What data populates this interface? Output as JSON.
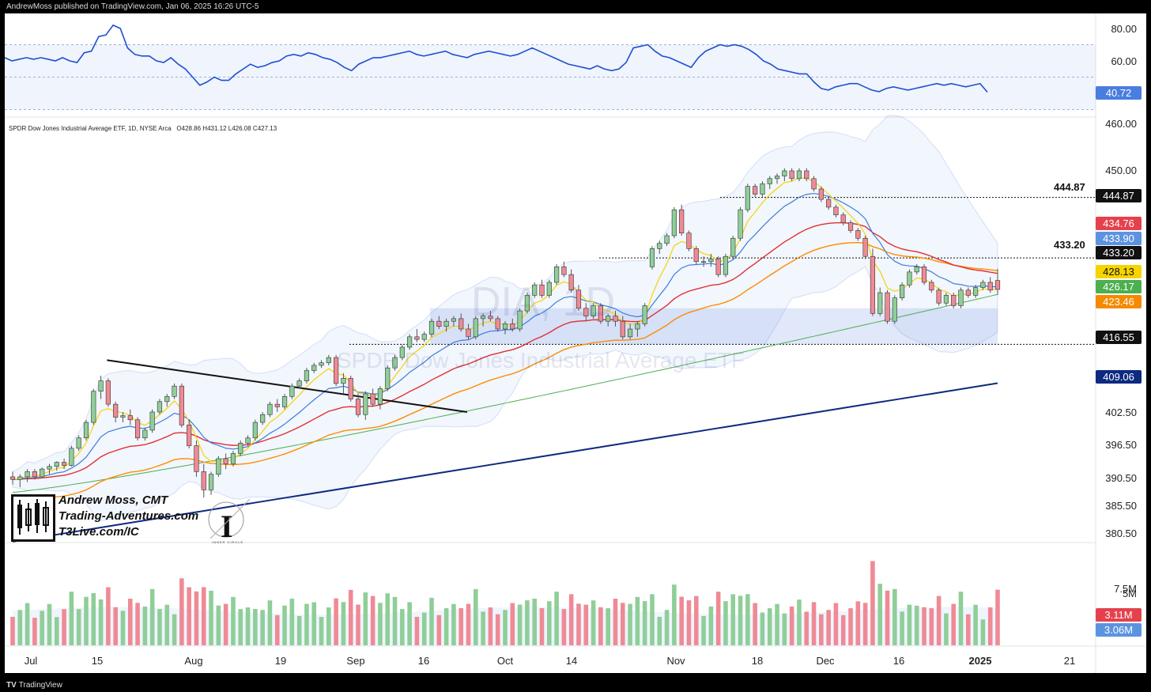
{
  "header": {
    "publisher": "AndrewMoss published on TradingView.com, Jan 06, 2025 16:26 UTC-5"
  },
  "footer": {
    "brand": "TradingView"
  },
  "instrument": {
    "title": "SPDR Dow Jones Industrial Average ETF, 1D, NYSE Arca",
    "ohlc_text": "O428.86  H431.12  L426.08  C427.13",
    "watermark_symbol": "DIA, 1D",
    "watermark_name": "SPDR Dow Jones Industrial Average ETF"
  },
  "logo": {
    "line1": "Andrew Moss, CMT",
    "line2": "Trading-Adventures.com",
    "line3": "T3Live.com/IC",
    "ic_caption": "INNER CIRCLE"
  },
  "colors": {
    "up": "#8fce98",
    "down": "#ef8a95",
    "ema8": "#f5d400",
    "ema21": "#3b7dd8",
    "sma50": "#e03030",
    "sma100": "#ff8c00",
    "sma150": "#4caf50",
    "sma200": "#0d2a80",
    "rsi": "#1f4fd1"
  },
  "price_labels": [
    {
      "text": "444.87",
      "bg": "#111111"
    },
    {
      "text": "434.76",
      "bg": "#e5414d"
    },
    {
      "text": "433.90",
      "bg": "#5c93e0"
    },
    {
      "text": "433.20",
      "bg": "#111111"
    },
    {
      "text": "428.13",
      "bg": "#f5d400",
      "fg": "#111"
    },
    {
      "text": "426.17",
      "bg": "#4caf50"
    },
    {
      "text": "423.46",
      "bg": "#f58a00"
    },
    {
      "text": "416.55",
      "bg": "#111111"
    },
    {
      "text": "409.06",
      "bg": "#0d2a80"
    }
  ],
  "level_texts": {
    "upper": "444.87",
    "lower": "433.20"
  },
  "rsi_axis": [
    "80.00",
    "60.00"
  ],
  "rsi_value": "40.72",
  "price_axis": [
    "460.00",
    "450.00",
    "402.50",
    "396.50",
    "390.50",
    "385.50",
    "380.50"
  ],
  "volume_axis": [
    "7.5M",
    "5M"
  ],
  "volume_labels": [
    {
      "text": "3.11M",
      "bg": "#e5414d"
    },
    {
      "text": "3.06M",
      "bg": "#5c93e0"
    }
  ],
  "months": [
    "Jul",
    "15",
    "Aug",
    "19",
    "Sep",
    "16",
    "Oct",
    "14",
    "Nov",
    "18",
    "Dec",
    "16",
    "2025",
    "21"
  ],
  "chart_data": [
    {
      "type": "line",
      "title": "RSI",
      "ylim": [
        40,
        85
      ],
      "reference_lines": [
        70,
        50,
        30
      ],
      "series": [
        {
          "values": [
            62,
            60,
            61,
            62,
            61,
            62,
            61,
            60,
            62,
            60,
            59,
            65,
            66,
            75,
            76,
            82,
            80,
            68,
            64,
            63,
            63,
            60,
            59,
            62,
            58,
            55,
            50,
            45,
            47,
            50,
            48,
            48,
            52,
            55,
            58,
            56,
            57,
            59,
            60,
            63,
            64,
            63,
            65,
            64,
            62,
            61,
            59,
            56,
            54,
            58,
            60,
            62,
            62,
            63,
            64,
            65,
            66,
            64,
            63,
            64,
            65,
            66,
            64,
            63,
            62,
            64,
            65,
            66,
            65,
            64,
            63,
            64,
            66,
            68,
            66,
            64,
            62,
            60,
            58,
            57,
            56,
            55,
            57,
            55,
            54,
            55,
            59,
            68,
            69,
            70,
            66,
            63,
            62,
            60,
            58,
            56,
            62,
            66,
            68,
            70,
            69,
            70,
            69,
            67,
            64,
            60,
            58,
            55,
            54,
            53,
            52,
            52,
            47,
            43,
            42,
            44,
            45,
            46,
            46,
            44,
            42,
            41,
            43,
            44,
            43,
            42,
            43,
            44,
            45,
            46,
            45,
            46,
            45,
            44,
            45,
            46,
            40.72
          ]
        }
      ]
    },
    {
      "type": "candlestick",
      "title": "SPDR Dow Jones Industrial Average ETF, 1D, NYSE Arca",
      "ylim": [
        380,
        462
      ],
      "x": [
        "Jul",
        "15",
        "Aug",
        "19",
        "Sep",
        "16",
        "Oct",
        "14",
        "Nov",
        "18",
        "Dec",
        "16",
        "2025",
        "21"
      ],
      "candles": [
        [
          391.0,
          392.0,
          389.5,
          390.5
        ],
        [
          390.5,
          391.5,
          389.0,
          391.0
        ],
        [
          391.0,
          392.5,
          390.0,
          392.0
        ],
        [
          392.0,
          392.5,
          390.5,
          391.0
        ],
        [
          391.0,
          392.8,
          390.8,
          392.5
        ],
        [
          392.5,
          393.5,
          391.5,
          393.0
        ],
        [
          393.0,
          394.0,
          392.2,
          393.8
        ],
        [
          393.8,
          394.5,
          392.5,
          393.2
        ],
        [
          393.2,
          397.0,
          393.0,
          396.5
        ],
        [
          396.5,
          399.0,
          396.0,
          398.5
        ],
        [
          398.5,
          402.0,
          398.0,
          401.5
        ],
        [
          401.5,
          408.0,
          401.0,
          407.5
        ],
        [
          407.5,
          410.5,
          406.0,
          409.5
        ],
        [
          409.5,
          410.0,
          404.5,
          405.0
        ],
        [
          405.0,
          405.5,
          401.5,
          402.5
        ],
        [
          402.5,
          403.5,
          401.5,
          402.8
        ],
        [
          402.8,
          404.0,
          401.0,
          402.0
        ],
        [
          402.0,
          402.5,
          398.0,
          398.5
        ],
        [
          398.5,
          400.5,
          398.0,
          400.0
        ],
        [
          400.0,
          404.0,
          399.5,
          403.5
        ],
        [
          403.5,
          406.0,
          403.0,
          405.5
        ],
        [
          405.5,
          407.0,
          404.5,
          406.5
        ],
        [
          406.5,
          409.0,
          406.0,
          408.5
        ],
        [
          408.5,
          409.0,
          400.5,
          401.0
        ],
        [
          401.0,
          402.0,
          396.5,
          397.0
        ],
        [
          397.0,
          398.0,
          391.0,
          392.0
        ],
        [
          392.0,
          393.5,
          387.0,
          388.5
        ],
        [
          388.5,
          392.0,
          387.5,
          391.5
        ],
        [
          391.5,
          395.0,
          391.0,
          394.5
        ],
        [
          394.5,
          395.5,
          392.5,
          393.5
        ],
        [
          393.5,
          396.0,
          393.0,
          395.5
        ],
        [
          395.5,
          398.0,
          395.0,
          397.5
        ],
        [
          397.5,
          399.0,
          397.0,
          398.5
        ],
        [
          398.5,
          402.0,
          398.0,
          401.5
        ],
        [
          401.5,
          403.5,
          401.0,
          403.0
        ],
        [
          403.0,
          405.5,
          402.5,
          405.0
        ],
        [
          405.0,
          406.0,
          403.5,
          404.5
        ],
        [
          404.5,
          407.0,
          404.0,
          406.5
        ],
        [
          406.5,
          409.0,
          406.0,
          408.5
        ],
        [
          408.5,
          410.0,
          408.0,
          409.5
        ],
        [
          409.5,
          412.0,
          409.0,
          411.5
        ],
        [
          411.5,
          413.0,
          411.0,
          412.5
        ],
        [
          412.5,
          413.5,
          412.0,
          413.0
        ],
        [
          413.0,
          414.5,
          412.5,
          414.0
        ],
        [
          414.0,
          414.5,
          408.5,
          409.0
        ],
        [
          409.0,
          411.0,
          407.0,
          410.0
        ],
        [
          410.0,
          410.5,
          405.5,
          406.0
        ],
        [
          406.0,
          407.0,
          402.5,
          403.0
        ],
        [
          403.0,
          407.5,
          402.0,
          407.0
        ],
        [
          407.0,
          408.0,
          404.5,
          405.0
        ],
        [
          405.0,
          408.5,
          404.0,
          408.0
        ],
        [
          408.0,
          412.5,
          407.5,
          412.0
        ],
        [
          412.0,
          414.5,
          411.5,
          414.0
        ],
        [
          414.0,
          416.5,
          413.5,
          416.0
        ],
        [
          416.0,
          418.5,
          415.5,
          418.0
        ],
        [
          418.0,
          419.5,
          417.0,
          417.5
        ],
        [
          417.5,
          419.0,
          417.0,
          418.5
        ],
        [
          418.5,
          421.5,
          418.0,
          421.0
        ],
        [
          421.0,
          422.0,
          419.5,
          420.0
        ],
        [
          420.0,
          421.5,
          419.0,
          421.0
        ],
        [
          421.0,
          422.0,
          420.0,
          421.5
        ],
        [
          421.5,
          422.5,
          419.0,
          419.5
        ],
        [
          419.5,
          420.5,
          417.5,
          418.0
        ],
        [
          418.0,
          422.0,
          417.5,
          421.5
        ],
        [
          421.5,
          422.5,
          420.0,
          422.0
        ],
        [
          422.0,
          423.0,
          421.0,
          421.5
        ],
        [
          421.5,
          422.0,
          419.0,
          419.5
        ],
        [
          419.5,
          421.0,
          418.5,
          420.5
        ],
        [
          420.5,
          421.5,
          419.0,
          419.5
        ],
        [
          419.5,
          423.5,
          419.0,
          423.0
        ],
        [
          423.0,
          426.5,
          422.5,
          426.0
        ],
        [
          426.0,
          428.5,
          425.5,
          428.0
        ],
        [
          428.0,
          429.0,
          425.5,
          426.0
        ],
        [
          426.0,
          429.0,
          425.5,
          428.5
        ],
        [
          428.5,
          432.0,
          428.0,
          431.5
        ],
        [
          431.5,
          432.5,
          429.5,
          430.0
        ],
        [
          430.0,
          431.0,
          426.5,
          427.0
        ],
        [
          427.0,
          428.0,
          423.0,
          423.5
        ],
        [
          423.5,
          424.5,
          421.0,
          422.0
        ],
        [
          422.0,
          424.5,
          421.5,
          424.0
        ],
        [
          424.0,
          424.5,
          420.5,
          421.0
        ],
        [
          421.0,
          422.5,
          420.0,
          422.0
        ],
        [
          422.0,
          423.0,
          420.0,
          421.0
        ],
        [
          421.0,
          422.0,
          417.5,
          418.0
        ],
        [
          418.0,
          420.5,
          417.5,
          419.5
        ],
        [
          419.5,
          421.0,
          418.0,
          420.5
        ],
        [
          420.5,
          424.5,
          420.0,
          424.0
        ],
        [
          431.5,
          435.5,
          431.0,
          435.0
        ],
        [
          435.0,
          436.5,
          434.0,
          436.0
        ],
        [
          436.0,
          438.0,
          435.5,
          437.5
        ],
        [
          437.5,
          443.0,
          437.0,
          442.5
        ],
        [
          442.5,
          443.5,
          437.5,
          438.0
        ],
        [
          438.0,
          438.5,
          434.5,
          435.0
        ],
        [
          435.0,
          435.5,
          432.0,
          432.5
        ],
        [
          432.5,
          433.5,
          431.5,
          432.5
        ],
        [
          432.5,
          434.0,
          431.5,
          433.0
        ],
        [
          433.0,
          433.5,
          429.5,
          430.0
        ],
        [
          430.0,
          434.0,
          429.5,
          433.5
        ],
        [
          433.5,
          437.5,
          433.0,
          437.0
        ],
        [
          437.0,
          443.0,
          436.5,
          442.5
        ],
        [
          442.5,
          447.5,
          442.0,
          447.0
        ],
        [
          447.0,
          447.5,
          445.0,
          445.5
        ],
        [
          445.5,
          448.0,
          445.0,
          447.5
        ],
        [
          447.5,
          449.0,
          446.5,
          448.5
        ],
        [
          448.5,
          449.5,
          447.5,
          449.0
        ],
        [
          449.0,
          450.5,
          448.0,
          450.0
        ],
        [
          450.0,
          450.5,
          448.0,
          448.5
        ],
        [
          448.5,
          450.5,
          448.0,
          450.0
        ],
        [
          450.0,
          450.5,
          448.0,
          448.5
        ],
        [
          448.5,
          449.0,
          446.0,
          446.5
        ],
        [
          446.5,
          447.0,
          444.0,
          444.5
        ],
        [
          444.5,
          445.0,
          442.5,
          443.0
        ],
        [
          443.0,
          443.5,
          441.0,
          441.5
        ],
        [
          441.5,
          442.0,
          439.5,
          440.0
        ],
        [
          440.0,
          440.5,
          438.0,
          438.5
        ],
        [
          438.5,
          439.0,
          436.5,
          437.0
        ],
        [
          437.0,
          437.5,
          433.0,
          433.5
        ],
        [
          433.5,
          435.0,
          422.0,
          422.5
        ],
        [
          422.5,
          427.5,
          422.0,
          426.5
        ],
        [
          426.5,
          427.0,
          420.5,
          421.0
        ],
        [
          421.0,
          426.0,
          420.5,
          425.5
        ],
        [
          425.5,
          428.5,
          425.0,
          428.0
        ],
        [
          428.0,
          431.0,
          427.5,
          430.5
        ],
        [
          430.5,
          432.0,
          430.0,
          431.5
        ],
        [
          431.5,
          432.0,
          428.0,
          428.5
        ],
        [
          428.5,
          429.0,
          426.5,
          427.0
        ],
        [
          427.0,
          427.5,
          424.0,
          424.5
        ],
        [
          424.5,
          426.5,
          424.0,
          426.0
        ],
        [
          426.0,
          426.5,
          423.5,
          424.0
        ],
        [
          424.0,
          427.5,
          423.5,
          427.0
        ],
        [
          427.0,
          427.5,
          425.5,
          426.0
        ],
        [
          426.0,
          428.0,
          425.5,
          427.5
        ],
        [
          427.5,
          429.0,
          427.0,
          428.5
        ],
        [
          428.5,
          429.5,
          426.5,
          427.0
        ],
        [
          428.86,
          431.12,
          426.08,
          427.13
        ]
      ],
      "levels": [
        444.87,
        433.2,
        416.55
      ],
      "trendline": [
        [
          1,
          413.5
        ],
        [
          50,
          403.5
        ]
      ],
      "highlight_zone": [
        416.55,
        423.5
      ]
    },
    {
      "type": "bar",
      "title": "Volume",
      "ylim": [
        0,
        9
      ],
      "last_values": [
        "3.11M",
        "3.06M"
      ]
    }
  ]
}
